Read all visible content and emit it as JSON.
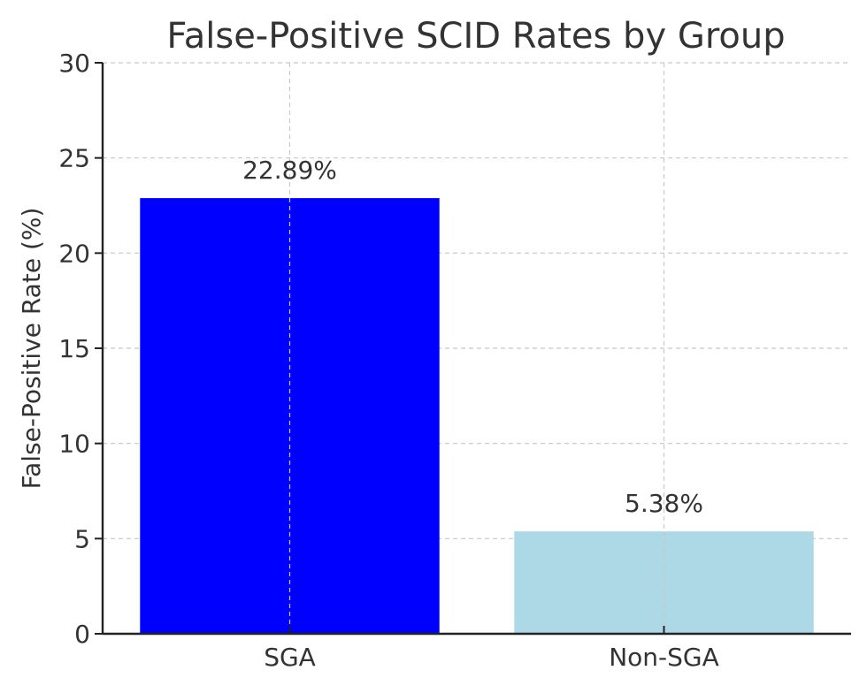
{
  "chart_data": {
    "type": "bar",
    "title": "False-Positive SCID Rates by Group",
    "xlabel": "",
    "ylabel": "False-Positive Rate (%)",
    "categories": [
      "SGA",
      "Non-SGA"
    ],
    "values": [
      22.89,
      5.38
    ],
    "value_labels": [
      "22.89%",
      "5.38%"
    ],
    "colors": [
      "#0000ff",
      "#add8e6"
    ],
    "ylim": [
      0,
      30
    ],
    "yticks": [
      0,
      5,
      10,
      15,
      20,
      25,
      30
    ],
    "grid": true
  }
}
